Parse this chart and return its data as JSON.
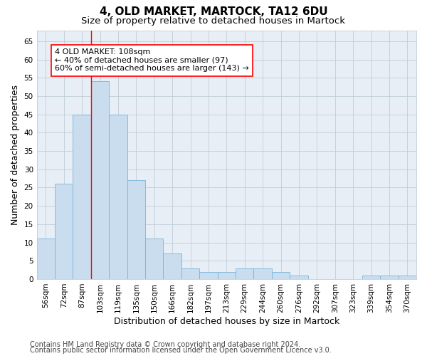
{
  "title": "4, OLD MARKET, MARTOCK, TA12 6DU",
  "subtitle": "Size of property relative to detached houses in Martock",
  "xlabel": "Distribution of detached houses by size in Martock",
  "ylabel": "Number of detached properties",
  "categories": [
    "56sqm",
    "72sqm",
    "87sqm",
    "103sqm",
    "119sqm",
    "135sqm",
    "150sqm",
    "166sqm",
    "182sqm",
    "197sqm",
    "213sqm",
    "229sqm",
    "244sqm",
    "260sqm",
    "276sqm",
    "292sqm",
    "307sqm",
    "323sqm",
    "339sqm",
    "354sqm",
    "370sqm"
  ],
  "values": [
    11,
    26,
    45,
    54,
    45,
    27,
    11,
    7,
    3,
    2,
    2,
    3,
    3,
    2,
    1,
    0,
    0,
    0,
    1,
    1,
    1
  ],
  "bar_color": "#c9ddef",
  "bar_edge_color": "#7ab4d8",
  "red_line_index": 3,
  "ylim": [
    0,
    68
  ],
  "yticks": [
    0,
    5,
    10,
    15,
    20,
    25,
    30,
    35,
    40,
    45,
    50,
    55,
    60,
    65
  ],
  "annotation_line1": "4 OLD MARKET: 108sqm",
  "annotation_line2": "← 40% of detached houses are smaller (97)",
  "annotation_line3": "60% of semi-detached houses are larger (143) →",
  "footer_line1": "Contains HM Land Registry data © Crown copyright and database right 2024.",
  "footer_line2": "Contains public sector information licensed under the Open Government Licence v3.0.",
  "background_color": "#ffffff",
  "plot_bg_color": "#e8eef5",
  "grid_color": "#c0cdd8",
  "title_fontsize": 11,
  "subtitle_fontsize": 9.5,
  "axis_label_fontsize": 9,
  "tick_fontsize": 7.5,
  "annotation_fontsize": 8,
  "footer_fontsize": 7
}
